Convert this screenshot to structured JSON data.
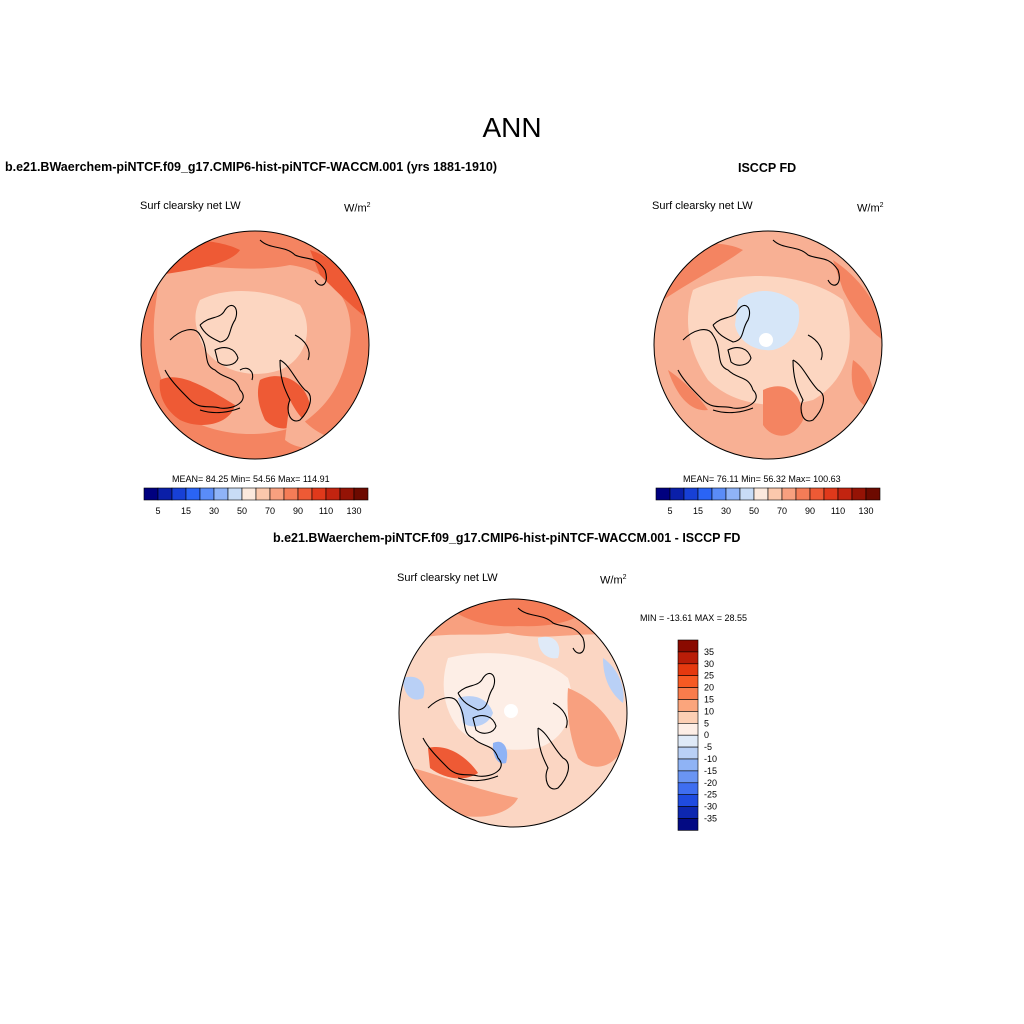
{
  "main_title": "ANN",
  "panels": [
    {
      "title": "b.e21.BWaerchem-piNTCF.f09_g17.CMIP6-hist-piNTCF-WACCM.001 (yrs 1881-1910)",
      "left_label": "Surf clearsky net LW",
      "units": "W/m",
      "units_sup": "2",
      "stats": "MEAN=  84.25  Min=  54.56  Max= 114.91"
    },
    {
      "title": "ISCCP FD",
      "left_label": "Surf clearsky net LW",
      "units": "W/m",
      "units_sup": "2",
      "stats": "MEAN=  76.11  Min=  56.32  Max= 100.63"
    },
    {
      "title": "b.e21.BWaerchem-piNTCF.f09_g17.CMIP6-hist-piNTCF-WACCM.001 - ISCCP FD",
      "left_label": "Surf clearsky net LW",
      "units": "W/m",
      "units_sup": "2",
      "stats": "MIN = -13.61 MAX =  28.55"
    }
  ],
  "abs_colorbar": {
    "colors": [
      "#00007f",
      "#0a1fa8",
      "#1740d6",
      "#2a64f5",
      "#5a8cf8",
      "#8fb3f7",
      "#c8dcf6",
      "#fbe9dd",
      "#fbc8ac",
      "#f8a07f",
      "#f47c57",
      "#ee5a35",
      "#e0391b",
      "#c22410",
      "#951305",
      "#6d0a00"
    ],
    "labels": [
      "5",
      "15",
      "30",
      "50",
      "70",
      "90",
      "110",
      "130"
    ]
  },
  "diff_colorbar": {
    "colors": [
      "#8a0a00",
      "#b91d08",
      "#e5390f",
      "#f75a23",
      "#f97c4c",
      "#fba57c",
      "#fccfb4",
      "#fdeee6",
      "#dfeaf8",
      "#b9d0f6",
      "#8fb3f5",
      "#6a95f3",
      "#3f6ef0",
      "#1f4be0",
      "#0d27b0",
      "#030a83"
    ],
    "labels": [
      "35",
      "30",
      "25",
      "20",
      "15",
      "10",
      "5",
      "0",
      "-5",
      "-10",
      "-15",
      "-20",
      "-25",
      "-30",
      "-35"
    ]
  },
  "colors": {
    "ocean_warm": "#f48461",
    "land_mid": "#f8b094",
    "land_pale": "#fcd6c1",
    "strong": "#ee5a35",
    "blue_pale": "#d6e6f8",
    "coast": "#000000"
  }
}
